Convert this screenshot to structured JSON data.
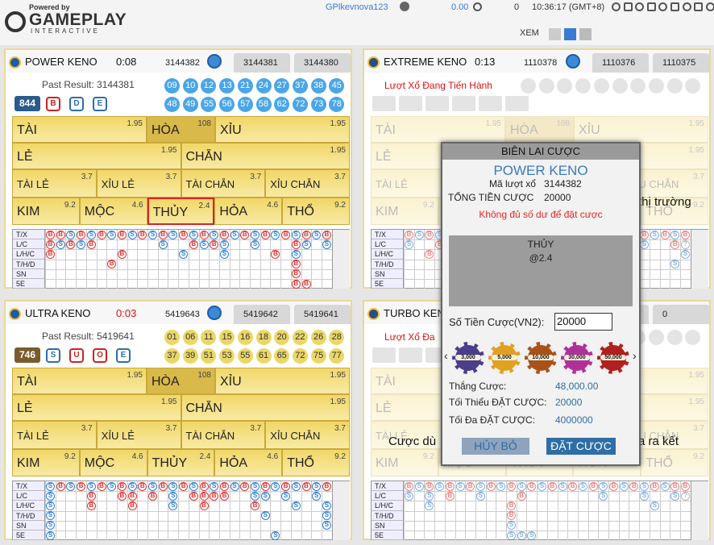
{
  "header": {
    "powered_by": "Powered by",
    "brand": "GAMEPLAY",
    "brand_sub": "INTERACTIVE",
    "user": "GPlkevnova123",
    "balance": "0.00",
    "count": "0",
    "time": "10:36:17 (GMT+8)",
    "view_label": "XEM"
  },
  "bet_board": {
    "rows": [
      [
        {
          "label": "TÀI",
          "odds": 1.95
        },
        {
          "label": "HÒA",
          "odds": 108
        },
        {
          "label": "XỈU",
          "odds": 1.95
        }
      ],
      [
        {
          "label": "LẺ",
          "odds": 1.95
        },
        {
          "label": "CHẴN",
          "odds": 1.95
        }
      ],
      [
        {
          "label": "TÀI LẺ",
          "odds": 3.7
        },
        {
          "label": "XỈU LẺ",
          "odds": 3.7
        },
        {
          "label": "TÀI CHẴN",
          "odds": 3.7
        },
        {
          "label": "XỈU CHẴN",
          "odds": 3.7
        }
      ],
      [
        {
          "label": "KIM",
          "odds": 9.2
        },
        {
          "label": "MỘC",
          "odds": 4.6
        },
        {
          "label": "THỦY",
          "odds": 2.4
        },
        {
          "label": "HỎA",
          "odds": 4.6
        },
        {
          "label": "THỔ",
          "odds": 9.2
        }
      ]
    ]
  },
  "road_labels": [
    "T/X",
    "L/C",
    "L/H/C",
    "T/H/D",
    "SN",
    "5E"
  ],
  "panels": [
    {
      "name": "POWER KENO",
      "timer": "0:08",
      "draws": [
        "3144382",
        "3144381",
        "3144380"
      ],
      "past_result": "Past Result: 3144381",
      "count": "844",
      "buttons": [
        "B",
        "D",
        "E"
      ],
      "balls": [
        "09",
        "10",
        "12",
        "13",
        "21",
        "24",
        "27",
        "37",
        "38",
        "45",
        "48",
        "49",
        "55",
        "56",
        "57",
        "58",
        "62",
        "72",
        "73",
        "78"
      ],
      "ball_color": "#4aa6e6",
      "faded": false,
      "selected": {
        "row": 3,
        "col": 2
      },
      "road": [
        "BBSBSBSBSBSBSBSBSBSBSBSBSBSB",
        "BSBSB......S..BSBS..S...BS.S",
        "B......B.....S...S....B.S...",
        "......B.................B...",
        "........................B...",
        "........................BB.."
      ]
    },
    {
      "name": "EXTREME KENO",
      "timer": "0:13",
      "draws": [
        "1110378",
        "1110376",
        "1110375"
      ],
      "status": "Lượt Xổ Đang Tiến Hành",
      "overlay_text": "thị trường",
      "faded": true,
      "road": [
        "BSBSB..................BSBSB",
        "S..B...................S..B?",
        "..B........................S",
        "..........................S.",
        "............................",
        "............................"
      ]
    },
    {
      "name": "ULTRA KENO",
      "timer": "0:03",
      "draws": [
        "5419643",
        "5419642",
        "5419641"
      ],
      "past_result": "Past Result: 5419641",
      "count": "746",
      "buttons": [
        "S",
        "U",
        "O",
        "E"
      ],
      "balls": [
        "01",
        "06",
        "11",
        "15",
        "16",
        "18",
        "20",
        "22",
        "26",
        "28",
        "37",
        "39",
        "51",
        "53",
        "55",
        "61",
        "65",
        "72",
        "75",
        "77"
      ],
      "ball_color": "#ebd768",
      "faded": false,
      "road": [
        "SBSBSBSBSBSBSBSBSBSBSBSBSBSB",
        "S...B..BB.B.S.BBBB..SS.S..S.",
        "S...B...B...S..B....B...S..S",
        "S....................S.....S",
        "S..........................S",
        "S.....................S....."
      ]
    },
    {
      "name": "TURBO KEN",
      "draws": [
        "0"
      ],
      "status": "Lượt Xổ Đa",
      "overlay_text": "Cược dù",
      "overlay_text2": "a ra kết",
      "faded": true,
      "road": [
        "BSBSBSBSBSBSBSBSBSBSBSBSBSBB",
        "S.S.B..S...B.......S...S..S?",
        "..S.......B.............S...",
        "..........B.................",
        "..........S.................",
        "..........SSS..............."
      ]
    }
  ],
  "modal": {
    "title": "BIÊN LAI CƯỢC",
    "game": "POWER KENO",
    "draw_label": "Mã lượt xổ",
    "draw": "3144382",
    "total_label": "TỔNG TIỀN CƯỢC",
    "total": "20000",
    "error": "Không đủ số dư để đặt cược",
    "selection": "THỦY",
    "selection_odds": "@2.4",
    "amount_label": "Số Tiền Cược(VN2):",
    "amount": "20000",
    "chips": [
      "3,000",
      "5,000",
      "10,000",
      "30,000",
      "50,000"
    ],
    "win_label": "Thắng Cược:",
    "win": "48,000.00",
    "min_label": "Tối Thiểu ĐẶT CƯỢC:",
    "min": "20000",
    "max_label": "Tối Đa ĐẶT CƯỢC:",
    "max": "4000000",
    "cancel": "HỦY BỎ",
    "confirm": "ĐẶT CƯỢC"
  }
}
